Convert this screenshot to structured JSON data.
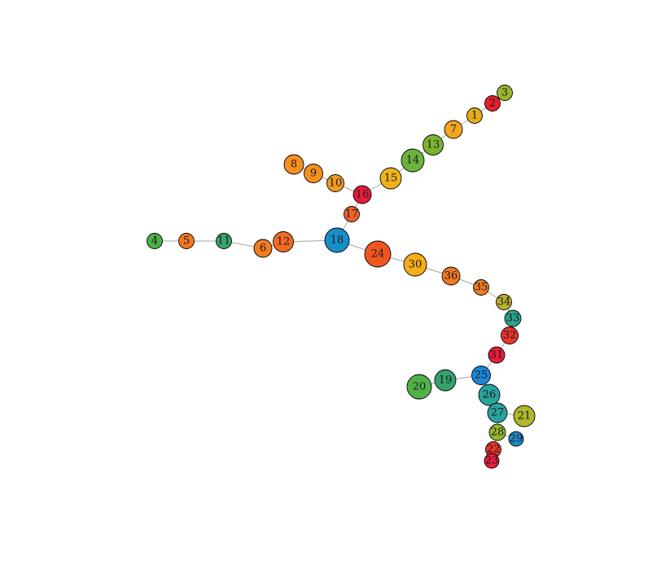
{
  "graph": {
    "nodes": [
      {
        "id": "1",
        "label": "1",
        "color": "#e3ad1b"
      },
      {
        "id": "2",
        "label": "2",
        "color": "#e6202a"
      },
      {
        "id": "3",
        "label": "3",
        "color": "#98b62c"
      },
      {
        "id": "4",
        "label": "4",
        "color": "#4bb04a"
      },
      {
        "id": "5",
        "label": "5",
        "color": "#f07822"
      },
      {
        "id": "6",
        "label": "6",
        "color": "#f07d22"
      },
      {
        "id": "7",
        "label": "7",
        "color": "#f2a521"
      },
      {
        "id": "8",
        "label": "8",
        "color": "#f39020"
      },
      {
        "id": "9",
        "label": "9",
        "color": "#f39020"
      },
      {
        "id": "10",
        "label": "10",
        "color": "#f29a21"
      },
      {
        "id": "11",
        "label": "11",
        "color": "#38a66a"
      },
      {
        "id": "12",
        "label": "12",
        "color": "#f06a21"
      },
      {
        "id": "13",
        "label": "13",
        "color": "#7cb32f"
      },
      {
        "id": "14",
        "label": "14",
        "color": "#6cb33d"
      },
      {
        "id": "15",
        "label": "15",
        "color": "#efb21a"
      },
      {
        "id": "16",
        "label": "16",
        "color": "#e61b3a"
      },
      {
        "id": "17",
        "label": "17",
        "color": "#ee6227"
      },
      {
        "id": "18",
        "label": "18",
        "color": "#168fc9"
      },
      {
        "id": "19",
        "label": "19",
        "color": "#35a36c"
      },
      {
        "id": "20",
        "label": "20",
        "color": "#4fb34a"
      },
      {
        "id": "21",
        "label": "21",
        "color": "#b0b72c"
      },
      {
        "id": "22",
        "label": "22",
        "color": "#e9352c"
      },
      {
        "id": "23",
        "label": "23",
        "color": "#e61e3d"
      },
      {
        "id": "24",
        "label": "24",
        "color": "#f25620"
      },
      {
        "id": "25",
        "label": "25",
        "color": "#1c86d6"
      },
      {
        "id": "26",
        "label": "26",
        "color": "#2aa39d"
      },
      {
        "id": "27",
        "label": "27",
        "color": "#2aa39d"
      },
      {
        "id": "28",
        "label": "28",
        "color": "#98b62c"
      },
      {
        "id": "29",
        "label": "29",
        "color": "#1f8bc7"
      },
      {
        "id": "30",
        "label": "30",
        "color": "#f5ad19"
      },
      {
        "id": "31",
        "label": "31",
        "color": "#e61e3d"
      },
      {
        "id": "32",
        "label": "32",
        "color": "#e9352c"
      },
      {
        "id": "33",
        "label": "33",
        "color": "#2aa38f"
      },
      {
        "id": "34",
        "label": "34",
        "color": "#bdb22a"
      },
      {
        "id": "35",
        "label": "35",
        "color": "#f07d22"
      },
      {
        "id": "36",
        "label": "36",
        "color": "#f07822"
      }
    ],
    "edges": [
      [
        "3",
        "2"
      ],
      [
        "2",
        "1"
      ],
      [
        "1",
        "7"
      ],
      [
        "7",
        "13"
      ],
      [
        "13",
        "14"
      ],
      [
        "14",
        "15"
      ],
      [
        "15",
        "16"
      ],
      [
        "8",
        "9"
      ],
      [
        "9",
        "10"
      ],
      [
        "10",
        "16"
      ],
      [
        "16",
        "17"
      ],
      [
        "17",
        "18"
      ],
      [
        "4",
        "5"
      ],
      [
        "5",
        "11"
      ],
      [
        "11",
        "6"
      ],
      [
        "6",
        "12"
      ],
      [
        "12",
        "18"
      ],
      [
        "18",
        "24"
      ],
      [
        "24",
        "30"
      ],
      [
        "30",
        "36"
      ],
      [
        "36",
        "35"
      ],
      [
        "35",
        "34"
      ],
      [
        "34",
        "33"
      ],
      [
        "33",
        "32"
      ],
      [
        "32",
        "31"
      ],
      [
        "31",
        "25"
      ],
      [
        "20",
        "19"
      ],
      [
        "19",
        "25"
      ],
      [
        "25",
        "26"
      ],
      [
        "26",
        "27"
      ],
      [
        "27",
        "21"
      ],
      [
        "27",
        "28"
      ],
      [
        "28",
        "29"
      ],
      [
        "28",
        "22"
      ],
      [
        "22",
        "23"
      ]
    ]
  }
}
